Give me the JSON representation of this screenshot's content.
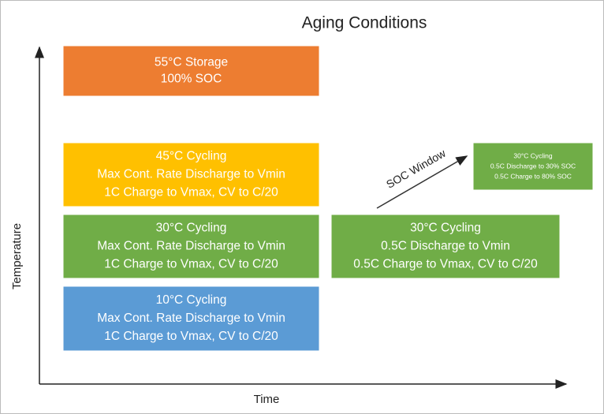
{
  "title": "Aging Conditions",
  "axes": {
    "y_label": "Temperature",
    "x_label": "Time"
  },
  "boxes": [
    {
      "lines": [
        "55°C Storage",
        "100% SOC"
      ]
    },
    {
      "lines": [
        "45°C Cycling",
        "Max Cont. Rate Discharge to Vmin",
        "1C Charge to Vmax, CV to C/20"
      ]
    },
    {
      "lines": [
        "30°C Cycling",
        "Max Cont. Rate Discharge to Vmin",
        "1C Charge to Vmax, CV to C/20"
      ]
    },
    {
      "lines": [
        "10°C Cycling",
        "Max Cont. Rate Discharge to Vmin",
        "1C Charge to Vmax, CV to C/20"
      ]
    },
    {
      "lines": [
        "30°C Cycling",
        "0.5C Discharge to Vmin",
        "0.5C Charge to Vmax, CV to C/20"
      ]
    },
    {
      "lines": [
        "30°C Cycling",
        "0.5C Discharge to 30% SOC",
        "0.5C Charge to 80% SOC"
      ]
    }
  ],
  "arrow_label": "SOC Window"
}
